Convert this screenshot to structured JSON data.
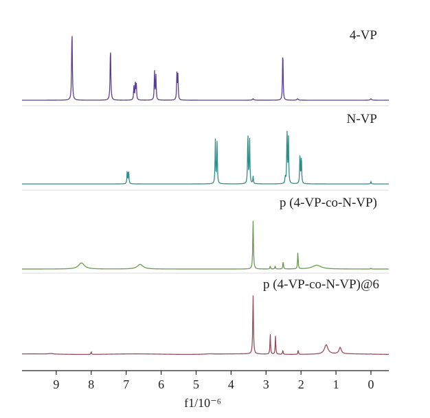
{
  "chart_data": {
    "type": "line",
    "title": "",
    "xlabel": "f1/10⁻⁶",
    "ylabel": "",
    "xlim": [
      9.6,
      -0.5
    ],
    "x_reversed": true,
    "x_ticks": [
      9,
      8,
      7,
      6,
      5,
      4,
      3,
      2,
      1,
      0
    ],
    "x_tick_labels": [
      "9",
      "8",
      "7",
      "6",
      "5",
      "4",
      "3",
      "2",
      "1",
      "0"
    ],
    "grid": false,
    "legend": "none",
    "series": [
      {
        "name": "4-VP",
        "color": "#5a3d96",
        "baseline_hump": false,
        "peaks": [
          {
            "ppm": 8.55,
            "height": 1.0,
            "width": 0.012
          },
          {
            "ppm": 7.45,
            "height": 0.75,
            "width": 0.012
          },
          {
            "ppm": 6.78,
            "height": 0.2,
            "width": 0.01
          },
          {
            "ppm": 6.74,
            "height": 0.23,
            "width": 0.01
          },
          {
            "ppm": 6.71,
            "height": 0.22,
            "width": 0.01
          },
          {
            "ppm": 6.19,
            "height": 0.41,
            "width": 0.01
          },
          {
            "ppm": 6.15,
            "height": 0.35,
            "width": 0.01
          },
          {
            "ppm": 5.55,
            "height": 0.37,
            "width": 0.01
          },
          {
            "ppm": 5.52,
            "height": 0.35,
            "width": 0.01
          },
          {
            "ppm": 3.37,
            "height": 0.02,
            "width": 0.02
          },
          {
            "ppm": 2.52,
            "height": 0.73,
            "width": 0.01
          },
          {
            "ppm": 2.1,
            "height": 0.02,
            "width": 0.02
          },
          {
            "ppm": 0.0,
            "height": 0.02,
            "width": 0.02
          }
        ]
      },
      {
        "name": "N-VP",
        "color": "#2e8e8a",
        "baseline_hump": false,
        "peaks": [
          {
            "ppm": 6.97,
            "height": 0.18,
            "width": 0.01
          },
          {
            "ppm": 6.93,
            "height": 0.18,
            "width": 0.01
          },
          {
            "ppm": 4.45,
            "height": 0.58,
            "width": 0.01
          },
          {
            "ppm": 4.4,
            "height": 0.55,
            "width": 0.01
          },
          {
            "ppm": 3.52,
            "height": 0.68,
            "width": 0.01
          },
          {
            "ppm": 3.47,
            "height": 0.62,
            "width": 0.01
          },
          {
            "ppm": 3.37,
            "height": 0.1,
            "width": 0.01
          },
          {
            "ppm": 2.45,
            "height": 0.09,
            "width": 0.01
          },
          {
            "ppm": 2.4,
            "height": 0.72,
            "width": 0.01
          },
          {
            "ppm": 2.36,
            "height": 0.64,
            "width": 0.01
          },
          {
            "ppm": 2.03,
            "height": 0.4,
            "width": 0.01
          },
          {
            "ppm": 1.99,
            "height": 0.37,
            "width": 0.01
          },
          {
            "ppm": 0.0,
            "height": 0.03,
            "width": 0.01
          }
        ]
      },
      {
        "name": "p (4-VP-co-N-VP)",
        "color": "#6a9a4e",
        "baseline_hump": false,
        "peaks": [
          {
            "ppm": 8.28,
            "height": 0.08,
            "width": 0.1
          },
          {
            "ppm": 6.6,
            "height": 0.06,
            "width": 0.1
          },
          {
            "ppm": 3.37,
            "height": 0.63,
            "width": 0.012
          },
          {
            "ppm": 2.88,
            "height": 0.04,
            "width": 0.01
          },
          {
            "ppm": 2.74,
            "height": 0.04,
            "width": 0.01
          },
          {
            "ppm": 2.51,
            "height": 0.1,
            "width": 0.01
          },
          {
            "ppm": 2.09,
            "height": 0.22,
            "width": 0.01
          },
          {
            "ppm": 1.55,
            "height": 0.05,
            "width": 0.15
          },
          {
            "ppm": 0.0,
            "height": 0.01,
            "width": 0.01
          }
        ]
      },
      {
        "name": "p (4-VP-co-N-VP)@6",
        "color": "#9a4a5a",
        "baseline_hump": true,
        "peaks": [
          {
            "ppm": 9.15,
            "height": 0.008,
            "width": 0.08
          },
          {
            "ppm": 8.0,
            "height": 0.04,
            "width": 0.01
          },
          {
            "ppm": 4.62,
            "height": 0.006,
            "width": 0.15
          },
          {
            "ppm": 3.37,
            "height": 0.83,
            "width": 0.012
          },
          {
            "ppm": 2.88,
            "height": 0.29,
            "width": 0.01
          },
          {
            "ppm": 2.73,
            "height": 0.26,
            "width": 0.01
          },
          {
            "ppm": 2.52,
            "height": 0.06,
            "width": 0.01
          },
          {
            "ppm": 2.08,
            "height": 0.06,
            "width": 0.01
          },
          {
            "ppm": 1.28,
            "height": 0.13,
            "width": 0.06
          },
          {
            "ppm": 0.88,
            "height": 0.09,
            "width": 0.04
          },
          {
            "ppm": 0.0,
            "height": 0.005,
            "width": 0.01
          }
        ]
      }
    ]
  }
}
